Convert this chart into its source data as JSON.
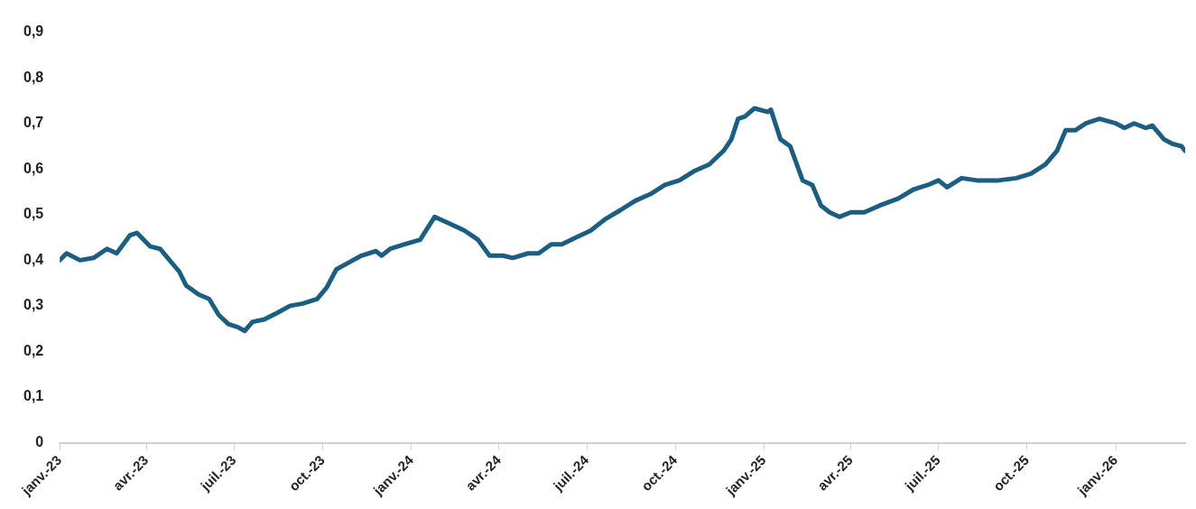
{
  "chart_data": {
    "type": "line",
    "x": [
      "2023-01-01",
      "2023-01-08",
      "2023-01-22",
      "2023-02-05",
      "2023-02-19",
      "2023-03-01",
      "2023-03-15",
      "2023-03-22",
      "2023-04-05",
      "2023-04-15",
      "2023-04-25",
      "2023-05-05",
      "2023-05-12",
      "2023-05-25",
      "2023-06-05",
      "2023-06-15",
      "2023-06-25",
      "2023-07-05",
      "2023-07-12",
      "2023-07-20",
      "2023-08-01",
      "2023-08-15",
      "2023-08-28",
      "2023-09-10",
      "2023-09-25",
      "2023-10-05",
      "2023-10-15",
      "2023-10-28",
      "2023-11-10",
      "2023-11-25",
      "2023-12-01",
      "2023-12-10",
      "2023-12-25",
      "2024-01-10",
      "2024-01-25",
      "2024-02-10",
      "2024-02-25",
      "2024-03-10",
      "2024-03-22",
      "2024-04-05",
      "2024-04-15",
      "2024-05-01",
      "2024-05-12",
      "2024-05-25",
      "2024-06-05",
      "2024-06-20",
      "2024-07-05",
      "2024-07-20",
      "2024-08-05",
      "2024-08-20",
      "2024-09-05",
      "2024-09-20",
      "2024-10-05",
      "2024-10-20",
      "2024-11-05",
      "2024-11-20",
      "2024-11-28",
      "2024-12-05",
      "2024-12-12",
      "2024-12-22",
      "2025-01-05",
      "2025-01-08",
      "2025-01-18",
      "2025-01-28",
      "2025-02-10",
      "2025-02-20",
      "2025-03-01",
      "2025-03-10",
      "2025-03-20",
      "2025-04-01",
      "2025-04-15",
      "2025-05-01",
      "2025-05-20",
      "2025-06-05",
      "2025-06-20",
      "2025-07-01",
      "2025-07-10",
      "2025-07-25",
      "2025-08-10",
      "2025-09-01",
      "2025-09-20",
      "2025-10-05",
      "2025-10-20",
      "2025-11-01",
      "2025-11-10",
      "2025-11-20",
      "2025-12-01",
      "2025-12-15",
      "2026-01-01",
      "2026-01-10",
      "2026-01-20",
      "2026-02-01",
      "2026-02-08",
      "2026-02-20",
      "2026-03-01",
      "2026-03-10",
      "2026-03-14"
    ],
    "series": [
      {
        "color": "#1b5e82",
        "values": [
          0.4,
          0.415,
          0.4,
          0.405,
          0.425,
          0.415,
          0.455,
          0.46,
          0.43,
          0.425,
          0.4,
          0.375,
          0.345,
          0.325,
          0.315,
          0.28,
          0.26,
          0.253,
          0.245,
          0.265,
          0.27,
          0.285,
          0.3,
          0.305,
          0.315,
          0.34,
          0.38,
          0.395,
          0.41,
          0.42,
          0.41,
          0.425,
          0.435,
          0.445,
          0.495,
          0.48,
          0.465,
          0.445,
          0.41,
          0.41,
          0.405,
          0.415,
          0.415,
          0.435,
          0.435,
          0.45,
          0.465,
          0.49,
          0.51,
          0.53,
          0.545,
          0.565,
          0.575,
          0.595,
          0.61,
          0.64,
          0.665,
          0.71,
          0.715,
          0.733,
          0.725,
          0.73,
          0.665,
          0.65,
          0.575,
          0.565,
          0.52,
          0.505,
          0.495,
          0.505,
          0.505,
          0.52,
          0.535,
          0.555,
          0.565,
          0.575,
          0.56,
          0.58,
          0.575,
          0.575,
          0.58,
          0.59,
          0.61,
          0.64,
          0.685,
          0.685,
          0.7,
          0.71,
          0.7,
          0.69,
          0.7,
          0.69,
          0.695,
          0.665,
          0.655,
          0.65,
          0.64
        ]
      }
    ],
    "xlim": [
      "2023-01-01",
      "2026-03-14"
    ],
    "xticks": [
      {
        "value": "2023-01-01",
        "label": "janv.-23"
      },
      {
        "value": "2023-04-01",
        "label": "avr.-23"
      },
      {
        "value": "2023-07-01",
        "label": "juil.-23"
      },
      {
        "value": "2023-10-01",
        "label": "oct.-23"
      },
      {
        "value": "2024-01-01",
        "label": "janv.-24"
      },
      {
        "value": "2024-04-01",
        "label": "avr.-24"
      },
      {
        "value": "2024-07-01",
        "label": "juil.-24"
      },
      {
        "value": "2024-10-01",
        "label": "oct.-24"
      },
      {
        "value": "2025-01-01",
        "label": "janv.-25"
      },
      {
        "value": "2025-04-01",
        "label": "avr.-25"
      },
      {
        "value": "2025-07-01",
        "label": "juil.-25"
      },
      {
        "value": "2025-10-01",
        "label": "oct.-25"
      },
      {
        "value": "2026-01-01",
        "label": "janv.-26"
      }
    ],
    "ylim": [
      0,
      0.9
    ],
    "yticks": [
      0,
      {
        "value": 0.1,
        "label": "0,1"
      },
      {
        "value": 0.2,
        "label": "0,2"
      },
      {
        "value": 0.3,
        "label": "0,3"
      },
      {
        "value": 0.4,
        "label": "0,4"
      },
      {
        "value": 0.5,
        "label": "0,5"
      },
      {
        "value": 0.6,
        "label": "0,6"
      },
      {
        "value": 0.7,
        "label": "0,7"
      },
      {
        "value": 0.8,
        "label": "0,8"
      },
      {
        "value": 0.9,
        "label": "0,9"
      }
    ],
    "grid": false,
    "legend": false,
    "marker": "none",
    "line_style": "solid"
  }
}
